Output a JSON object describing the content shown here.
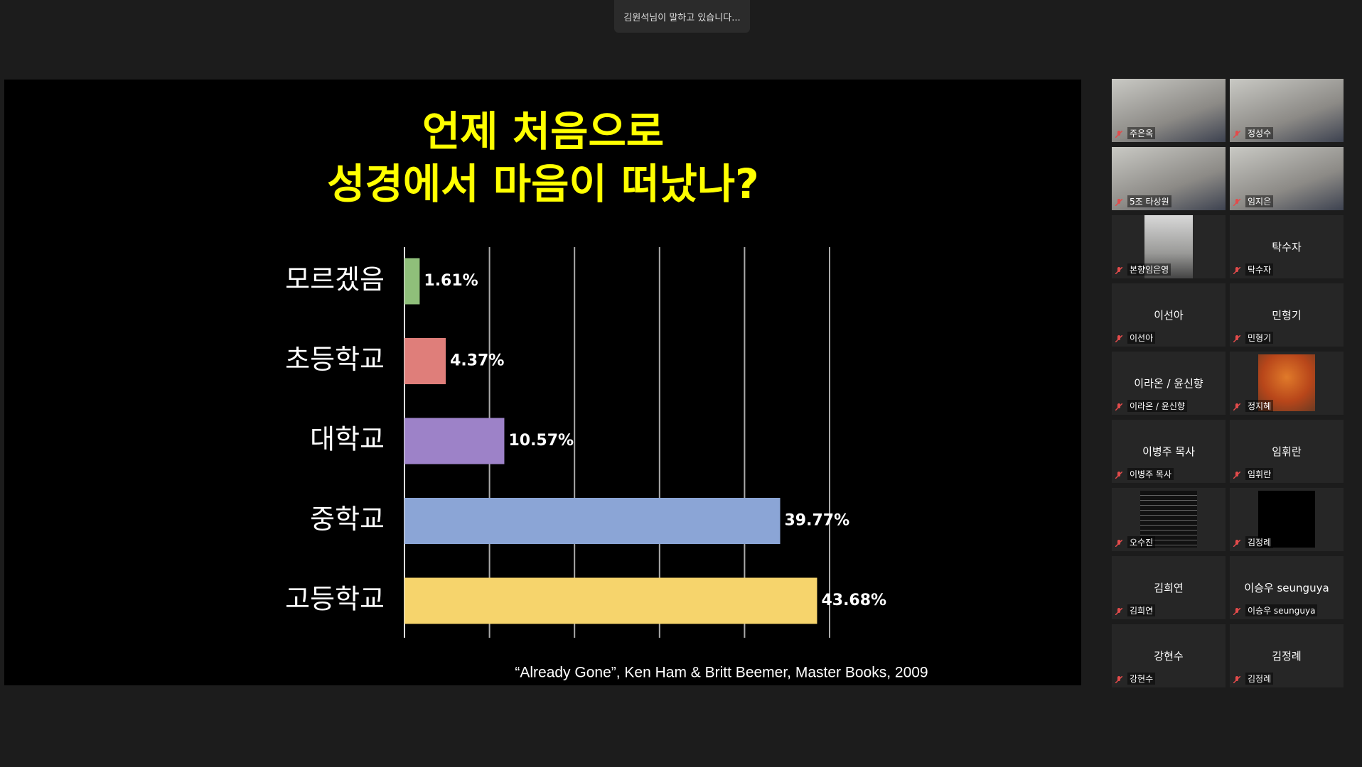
{
  "banner": "김원석님이 말하고 있습니다...",
  "chart_data": {
    "type": "hbar",
    "title": [
      "언제 처음으로",
      "성경에서 마음이 떠났나?"
    ],
    "categories": [
      "모르겠음",
      "초등학교",
      "대학교",
      "중학교",
      "고등학교"
    ],
    "values": [
      1.61,
      4.37,
      10.57,
      39.77,
      43.68
    ],
    "value_labels": [
      "1.61%",
      "4.37%",
      "10.57%",
      "39.77%",
      "43.68%"
    ],
    "colors": [
      "#8fbf7a",
      "#df7e7a",
      "#9d82c8",
      "#8ba5d6",
      "#f6d46c"
    ],
    "xlim": [
      0,
      45
    ],
    "xticks": [
      0,
      9,
      18,
      27,
      36,
      45
    ],
    "grid": true
  },
  "citation": "“Already Gone”, Ken Ham & Britt Beemer, Master Books, 2009",
  "participants": [
    {
      "label": "주은옥",
      "video": "full"
    },
    {
      "label": "정성수",
      "video": "full"
    },
    {
      "label": "5조 타상원",
      "video": "full"
    },
    {
      "label": "임지은",
      "video": "full"
    },
    {
      "label": "본향임은영",
      "video": "inset"
    },
    {
      "name": "탁수자",
      "label": "탁수자"
    },
    {
      "name": "이선아",
      "label": "이선아"
    },
    {
      "name": "민형기",
      "label": "민형기"
    },
    {
      "name": "이라온 / 윤신향",
      "label": "이라온 / 윤신향"
    },
    {
      "label": "정지혜",
      "video": "photo"
    },
    {
      "name": "이병주 목사",
      "label": "이병주 목사"
    },
    {
      "name": "임휘란",
      "label": "임휘란"
    },
    {
      "label": "오수진",
      "video": "text"
    },
    {
      "label": "김정례",
      "video": "black"
    },
    {
      "name": "김희연",
      "label": "김희연"
    },
    {
      "name": "이승우 seunguya",
      "label": "이승우 seunguya"
    },
    {
      "name": "강현수",
      "label": "강현수"
    },
    {
      "name": "김정례",
      "label": "김정례"
    }
  ]
}
